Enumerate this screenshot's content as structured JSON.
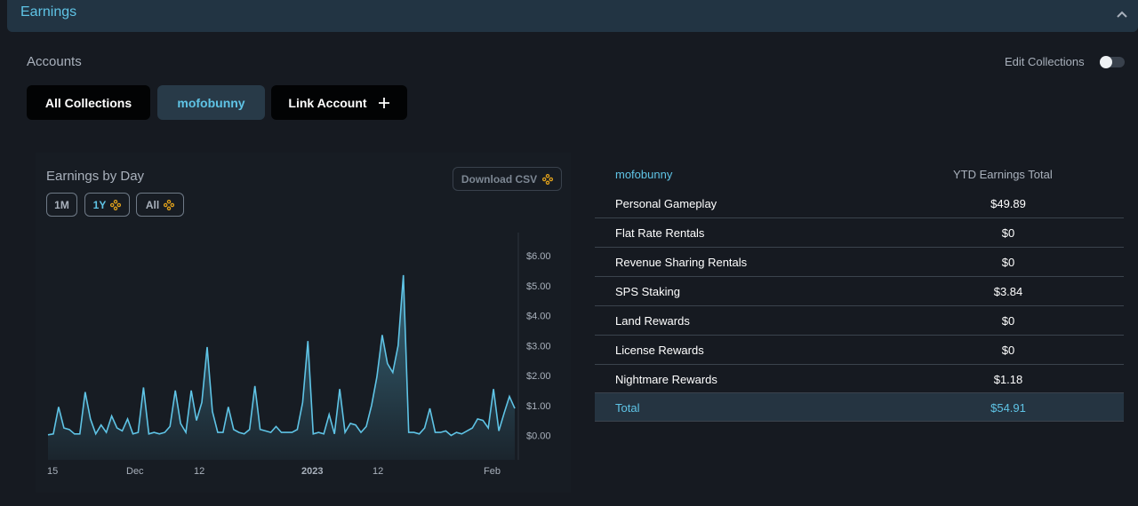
{
  "section": {
    "title": "Earnings"
  },
  "accounts": {
    "label": "Accounts",
    "edit_collections_label": "Edit Collections",
    "buttons": {
      "all_collections": "All Collections",
      "account": "mofobunny",
      "link_account": "Link Account"
    }
  },
  "chart_panel": {
    "title": "Earnings by Day",
    "download_label": "Download CSV",
    "ranges": [
      "1M",
      "1Y",
      "All"
    ],
    "selected_range": "1Y"
  },
  "chart_data": {
    "type": "area",
    "title": "Earnings by Day",
    "x_ticks": [
      "15",
      "Dec",
      "12",
      "2023",
      "12",
      "Feb"
    ],
    "y_ticks": [
      "$0.00",
      "$1.00",
      "$2.00",
      "$3.00",
      "$4.00",
      "$5.00",
      "$6.00"
    ],
    "ylim": [
      0,
      6
    ],
    "y_axis_side": "right",
    "grid": false,
    "series": [
      {
        "color": "#5fc4e6",
        "values": [
          0.02,
          0.05,
          0.95,
          0.25,
          0.2,
          0.05,
          0.05,
          1.45,
          0.55,
          0.05,
          0.35,
          0.1,
          0.65,
          0.25,
          0.15,
          0.55,
          0.05,
          0.1,
          1.6,
          0.05,
          0.1,
          0.05,
          0.1,
          0.3,
          1.5,
          0.4,
          0.1,
          1.5,
          0.5,
          1.1,
          2.95,
          0.8,
          0.1,
          0.1,
          0.95,
          0.2,
          0.1,
          0.05,
          0.2,
          1.65,
          0.2,
          0.15,
          0.1,
          0.3,
          0.1,
          0.1,
          0.1,
          0.2,
          1.1,
          3.15,
          0.05,
          0.1,
          0.05,
          0.7,
          0.05,
          1.55,
          0.1,
          0.4,
          0.35,
          0.1,
          0.3,
          1.0,
          1.95,
          3.35,
          2.4,
          2.1,
          3.0,
          5.35,
          0.1,
          0.1,
          0.05,
          0.25,
          0.9,
          0.1,
          0.1,
          0.15,
          0.0,
          0.1,
          0.05,
          0.15,
          0.25,
          0.55,
          0.5,
          0.25,
          1.55,
          0.15,
          0.75,
          1.3,
          0.9
        ]
      }
    ]
  },
  "earnings_table": {
    "account_header": "mofobunny",
    "total_header": "YTD Earnings Total",
    "rows": [
      {
        "label": "Personal Gameplay",
        "value": "$49.89"
      },
      {
        "label": "Flat Rate Rentals",
        "value": "$0"
      },
      {
        "label": "Revenue Sharing Rentals",
        "value": "$0"
      },
      {
        "label": "SPS Staking",
        "value": "$3.84"
      },
      {
        "label": "Land Rewards",
        "value": "$0"
      },
      {
        "label": "License Rewards",
        "value": "$0"
      },
      {
        "label": "Nightmare Rewards",
        "value": "$1.18"
      }
    ],
    "total": {
      "label": "Total",
      "value": "$54.91"
    }
  },
  "colors": {
    "accent": "#5fc4e6",
    "background": "#161a21",
    "header": "#223443"
  },
  "icons": {
    "collapse": "chevron-up-icon",
    "link": "plus-icon",
    "range": "move-icon",
    "download": "move-icon"
  }
}
